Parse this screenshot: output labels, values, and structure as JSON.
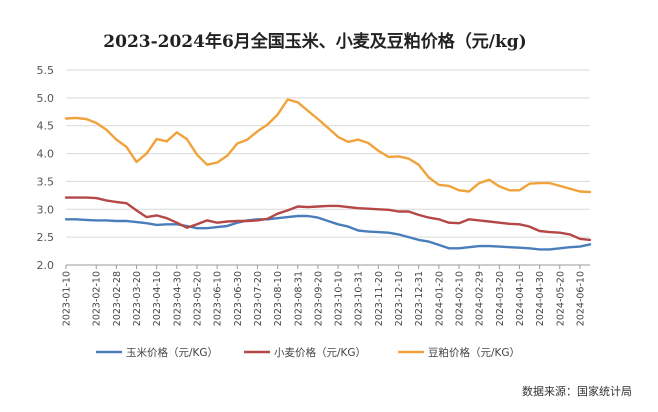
{
  "chart_data": {
    "type": "line",
    "title": "2023-2024年6月全国玉米、小麦及豆粕价格（元/kg)",
    "xlabel": "",
    "ylabel": "",
    "ylim": [
      2.0,
      5.5
    ],
    "yticks": [
      "2.0",
      "2.5",
      "3.0",
      "3.5",
      "4.0",
      "4.5",
      "5.0",
      "5.5"
    ],
    "grid": true,
    "legend_position": "bottom",
    "x": [
      "2023-01-10",
      "2023-01-20",
      "2023-01-31",
      "2023-02-10",
      "2023-02-20",
      "2023-02-28",
      "2023-03-10",
      "2023-03-20",
      "2023-03-31",
      "2023-04-10",
      "2023-04-20",
      "2023-04-30",
      "2023-05-10",
      "2023-05-20",
      "2023-05-31",
      "2023-06-10",
      "2023-06-20",
      "2023-06-30",
      "2023-07-10",
      "2023-07-20",
      "2023-07-31",
      "2023-08-10",
      "2023-08-20",
      "2023-08-31",
      "2023-09-10",
      "2023-09-20",
      "2023-09-30",
      "2023-10-10",
      "2023-10-20",
      "2023-10-31",
      "2023-11-10",
      "2023-11-20",
      "2023-11-30",
      "2023-12-10",
      "2023-12-20",
      "2023-12-31",
      "2024-01-10",
      "2024-01-20",
      "2024-01-31",
      "2024-02-10",
      "2024-02-20",
      "2024-02-29",
      "2024-03-10",
      "2024-03-20",
      "2024-03-31",
      "2024-04-10",
      "2024-04-20",
      "2024-04-30",
      "2024-05-10",
      "2024-05-20",
      "2024-05-31",
      "2024-06-10",
      "2024-06-20"
    ],
    "x_tick_labels": [
      "2023-01-10",
      "2023-02-10",
      "2023-02-28",
      "2023-03-20",
      "2023-04-10",
      "2023-04-30",
      "2023-05-20",
      "2023-06-10",
      "2023-06-30",
      "2023-07-20",
      "2023-08-10",
      "2023-08-31",
      "2023-09-20",
      "2023-10-10",
      "2023-10-31",
      "2023-11-20",
      "2023-12-10",
      "2023-12-31",
      "2024-01-20",
      "2024-02-10",
      "2024-02-29",
      "2024-03-20",
      "2024-04-10",
      "2024-04-30",
      "2024-05-20",
      "2024-06-10"
    ],
    "series": [
      {
        "name": "玉米价格（元/KG）",
        "color": "#4a7ebb",
        "values": [
          2.82,
          2.82,
          2.81,
          2.8,
          2.8,
          2.79,
          2.79,
          2.77,
          2.75,
          2.72,
          2.73,
          2.73,
          2.7,
          2.66,
          2.66,
          2.68,
          2.7,
          2.76,
          2.8,
          2.82,
          2.82,
          2.84,
          2.86,
          2.88,
          2.88,
          2.85,
          2.79,
          2.73,
          2.69,
          2.62,
          2.6,
          2.59,
          2.58,
          2.55,
          2.5,
          2.45,
          2.42,
          2.36,
          2.3,
          2.3,
          2.32,
          2.34,
          2.34,
          2.33,
          2.32,
          2.31,
          2.3,
          2.28,
          2.28,
          2.3,
          2.32,
          2.33,
          2.37
        ]
      },
      {
        "name": "小麦价格（元/KG）",
        "color": "#b54747",
        "values": [
          3.21,
          3.21,
          3.21,
          3.2,
          3.16,
          3.13,
          3.11,
          2.98,
          2.86,
          2.89,
          2.84,
          2.76,
          2.67,
          2.73,
          2.8,
          2.76,
          2.78,
          2.79,
          2.79,
          2.8,
          2.83,
          2.92,
          2.98,
          3.05,
          3.04,
          3.05,
          3.06,
          3.06,
          3.04,
          3.02,
          3.01,
          3.0,
          2.99,
          2.96,
          2.96,
          2.9,
          2.85,
          2.82,
          2.76,
          2.75,
          2.82,
          2.8,
          2.78,
          2.76,
          2.74,
          2.73,
          2.69,
          2.61,
          2.59,
          2.58,
          2.55,
          2.47,
          2.45
        ]
      },
      {
        "name": "豆粕价格（元/KG）",
        "color": "#f0a23b",
        "values": [
          4.63,
          4.64,
          4.62,
          4.55,
          4.43,
          4.25,
          4.12,
          3.85,
          4.0,
          4.26,
          4.22,
          4.38,
          4.26,
          3.98,
          3.8,
          3.84,
          3.96,
          4.18,
          4.25,
          4.4,
          4.52,
          4.7,
          4.97,
          4.92,
          4.77,
          4.62,
          4.46,
          4.3,
          4.21,
          4.25,
          4.19,
          4.05,
          3.94,
          3.95,
          3.91,
          3.8,
          3.57,
          3.44,
          3.42,
          3.34,
          3.32,
          3.47,
          3.53,
          3.41,
          3.34,
          3.34,
          3.46,
          3.47,
          3.47,
          3.42,
          3.37,
          3.32,
          3.31
        ]
      }
    ]
  },
  "source_note": "数据来源：国家统计局"
}
